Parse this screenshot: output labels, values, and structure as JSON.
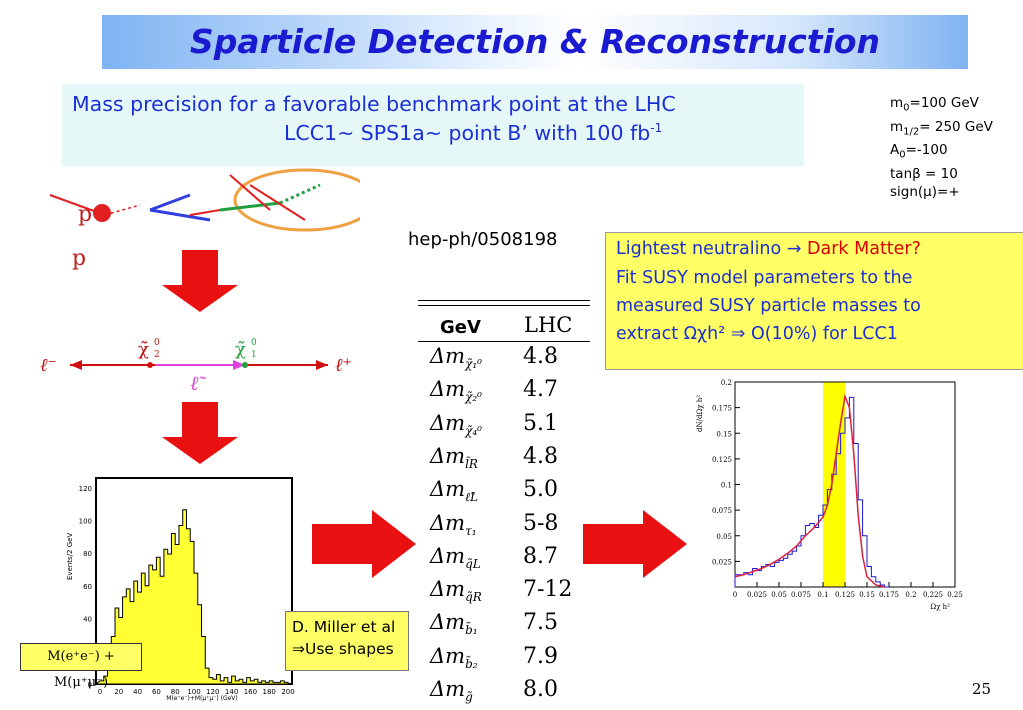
{
  "title": "Sparticle Detection & Reconstruction",
  "precision_box": {
    "line1": "Mass precision for a favorable benchmark point at the LHC",
    "line2_main": "LCC1~ SPS1a~ point B’ with 100 fb",
    "line2_sup": "-1"
  },
  "params": [
    {
      "sym": "m",
      "sub": "0",
      "rest": "=100 GeV"
    },
    {
      "sym": "m",
      "sub": "1/2",
      "rest": "= 250 GeV"
    },
    {
      "sym": "A",
      "sub": "0",
      "rest": "=-100"
    },
    {
      "sym": "tanβ",
      "sub": "",
      "rest": " = 10"
    },
    {
      "sym": "sign(μ)",
      "sub": "",
      "rest": "=+"
    }
  ],
  "reference": "hep-ph/0508198",
  "yellow_box": {
    "line1_a": "Lightest neutralino → ",
    "line1_b": "Dark Matter?",
    "line2": "Fit SUSY  model parameters to the",
    "line3": "measured SUSY particle masses to",
    "line4": "extract Ωχh²  ⇒ O(10%) for LCC1"
  },
  "table": {
    "col1": "GeV",
    "col2": "LHC",
    "rows": [
      {
        "base": "Δm",
        "sub": "χ̃₁⁰",
        "value": "4.8"
      },
      {
        "base": "Δm",
        "sub": "χ̃₂⁰",
        "value": "4.7"
      },
      {
        "base": "Δm",
        "sub": "χ̃₄⁰",
        "value": "5.1"
      },
      {
        "base": "Δm",
        "sub": "l̃R",
        "value": "4.8"
      },
      {
        "base": "Δm",
        "sub": "ℓ̃L",
        "value": "5.0"
      },
      {
        "base": "Δm",
        "sub": "τ₁",
        "value": "5-8"
      },
      {
        "base": "Δm",
        "sub": "q̃L",
        "value": "8.7"
      },
      {
        "base": "Δm",
        "sub": "q̃R",
        "value": "7-12"
      },
      {
        "base": "Δm",
        "sub": "b̃₁",
        "value": "7.5"
      },
      {
        "base": "Δm",
        "sub": "b̃₂",
        "value": "7.9"
      },
      {
        "base": "Δm",
        "sub": "g̃",
        "value": "8.0"
      }
    ]
  },
  "miller_box": {
    "line1": "D. Miller et al",
    "line2": "⇒Use shapes"
  },
  "mass_label": "M(e⁺e⁻) + M(μ⁺μ⁻)",
  "feynman": {
    "p_top": "p",
    "p_bottom": "p",
    "lepton_minus": "ℓ⁻",
    "lepton_plus": "ℓ⁺",
    "chi2": "χ̃",
    "chi2_sup": "0",
    "chi2_sub": "2",
    "chi1": "χ̃",
    "chi1_sup": "0",
    "chi1_sub": "1",
    "slepton": "ℓ̃"
  },
  "left_hist": {
    "ylabel": "Events/2 GeV",
    "xlabel": "M(e⁺e⁻)+M(μ⁺μ⁻) (GeV)",
    "yticks": [
      "0",
      "20",
      "40",
      "60",
      "80",
      "100",
      "120"
    ],
    "xticks": [
      "0",
      "20",
      "40",
      "60",
      "80",
      "100",
      "120",
      "140",
      "160",
      "180",
      "200"
    ]
  },
  "chart_data": {
    "type": "line",
    "title": "",
    "xlabel": "Ωχ h²",
    "ylabel": "dN/dΩχ h²",
    "xlim": [
      0,
      0.25
    ],
    "ylim": [
      0,
      0.2
    ],
    "xticks": [
      "0",
      "0.025",
      "0.05",
      "0.075",
      "0.1",
      "0.125",
      "0.15",
      "0.175",
      "0.2",
      "0.225",
      "0.25"
    ],
    "yticks": [
      "0.025",
      "0.05",
      "0.075",
      "0.1",
      "0.125",
      "0.15",
      "0.175",
      "0.2"
    ],
    "band": [
      0.1,
      0.125
    ],
    "series": [
      {
        "style": "histogram",
        "color": "#1a1ad0",
        "x": [
          0,
          0.005,
          0.01,
          0.015,
          0.02,
          0.025,
          0.03,
          0.035,
          0.04,
          0.045,
          0.05,
          0.055,
          0.06,
          0.065,
          0.07,
          0.075,
          0.08,
          0.085,
          0.09,
          0.095,
          0.1,
          0.105,
          0.11,
          0.115,
          0.12,
          0.125,
          0.13,
          0.135,
          0.14,
          0.145,
          0.15,
          0.155,
          0.16,
          0.165,
          0.17
        ],
        "y": [
          0.012,
          0.012,
          0.014,
          0.012,
          0.018,
          0.016,
          0.02,
          0.022,
          0.02,
          0.024,
          0.026,
          0.028,
          0.032,
          0.035,
          0.04,
          0.05,
          0.06,
          0.062,
          0.058,
          0.07,
          0.08,
          0.095,
          0.11,
          0.13,
          0.15,
          0.165,
          0.185,
          0.14,
          0.085,
          0.05,
          0.02,
          0.01,
          0.005,
          0.002,
          0
        ]
      },
      {
        "style": "line",
        "color": "#e0203a",
        "x": [
          0,
          0.01,
          0.02,
          0.03,
          0.04,
          0.05,
          0.06,
          0.07,
          0.08,
          0.09,
          0.1,
          0.105,
          0.11,
          0.115,
          0.12,
          0.125,
          0.13,
          0.135,
          0.14,
          0.145,
          0.15,
          0.16,
          0.17
        ],
        "y": [
          0.01,
          0.012,
          0.015,
          0.018,
          0.022,
          0.027,
          0.033,
          0.04,
          0.05,
          0.058,
          0.068,
          0.08,
          0.1,
          0.13,
          0.16,
          0.186,
          0.175,
          0.13,
          0.07,
          0.03,
          0.01,
          0.002,
          0
        ]
      }
    ]
  },
  "page_number": "25",
  "colors": {
    "title_blue": "#1a1ad0",
    "text_blue": "#1b2fd6",
    "red": "#d80000",
    "yellow": "#ffff66",
    "arrow_red": "#e81010"
  }
}
